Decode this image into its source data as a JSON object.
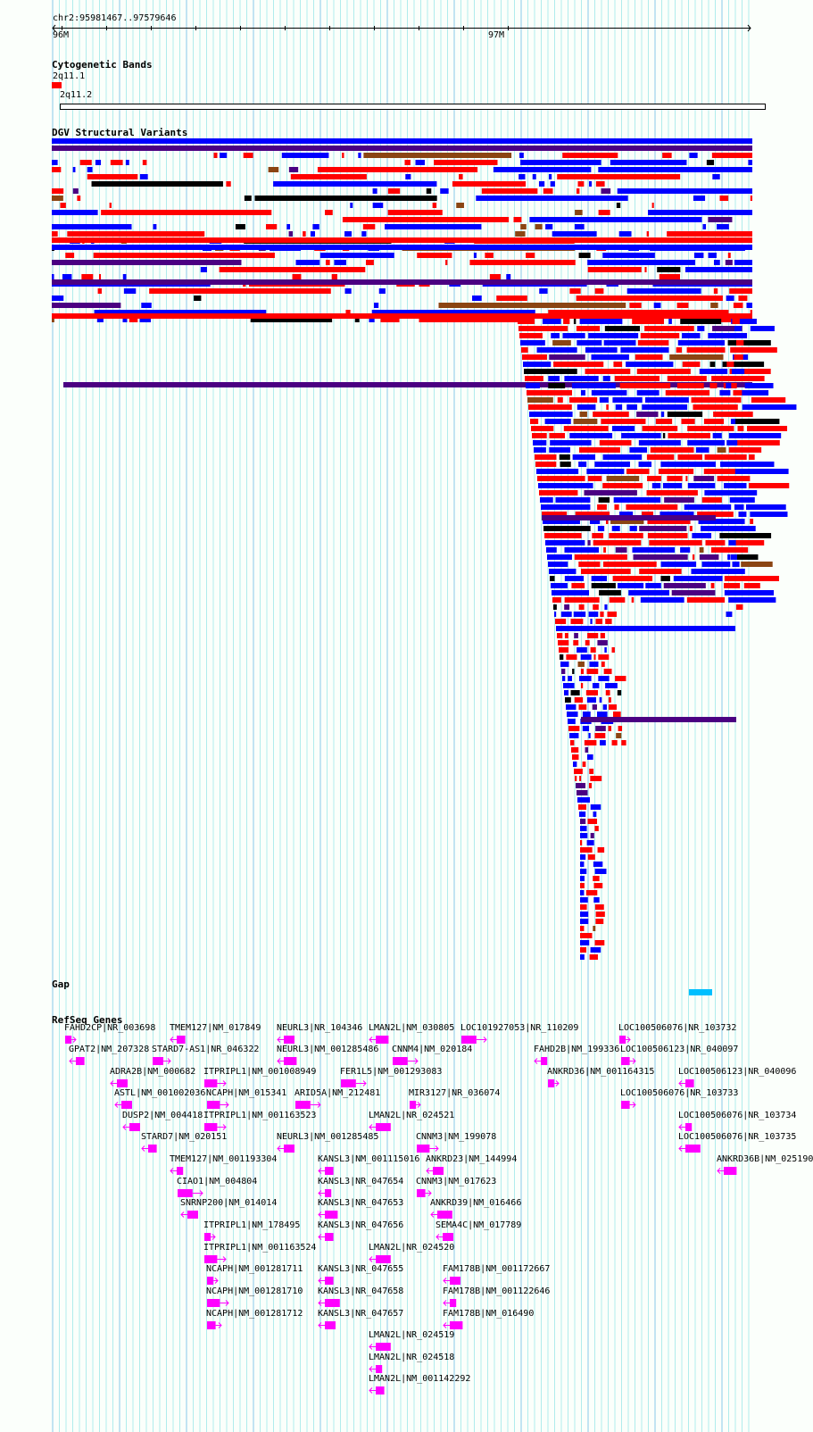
{
  "ruler": {
    "position": "chr2:95981467..97579646",
    "ticks": [
      {
        "label": "96M",
        "pos": 96000000
      },
      {
        "label": "97M",
        "pos": 97000000
      }
    ],
    "start": 95981467,
    "end": 97579646
  },
  "cytobands": {
    "title": "Cytogenetic Bands",
    "bands": [
      {
        "name": "2q11.1",
        "start": 95981467,
        "end": 96004000,
        "color": "#ff0000"
      },
      {
        "name": "2q11.2",
        "start": 96004000,
        "end": 97579646,
        "color": "#ffffff"
      }
    ]
  },
  "dgv": {
    "title": "DGV Structural Variants",
    "colors": {
      "gain": "#0000ff",
      "loss": "#ff0000",
      "both": "#8b4513",
      "inversion": "#4b0082",
      "complex": "#000000"
    }
  },
  "gap": {
    "title": "Gap",
    "items": [
      {
        "start": 97420000,
        "end": 97470000,
        "color": "#00bfff"
      }
    ]
  },
  "refseq": {
    "title": "RefSeq Genes",
    "color": "#ff00ff",
    "genes": [
      {
        "label": "FAHD2CP|NR_003698",
        "strand": "+"
      },
      {
        "label": "TMEM127|NM_017849",
        "strand": "-"
      },
      {
        "label": "NEURL3|NR_104346",
        "strand": "-"
      },
      {
        "label": "LMAN2L|NM_030805",
        "strand": "-"
      },
      {
        "label": "LOC101927053|NR_110209",
        "strand": "+"
      },
      {
        "label": "LOC100506076|NR_103732",
        "strand": "+"
      },
      {
        "label": "GPAT2|NM_207328",
        "strand": "-"
      },
      {
        "label": "STARD7-AS1|NR_046322",
        "strand": "+"
      },
      {
        "label": "NEURL3|NM_001285486",
        "strand": "-"
      },
      {
        "label": "CNNM4|NM_020184",
        "strand": "+"
      },
      {
        "label": "FAHD2B|NM_199336",
        "strand": "-"
      },
      {
        "label": "LOC100506123|NR_040097",
        "strand": "+"
      },
      {
        "label": "ADRA2B|NM_000682",
        "strand": "-"
      },
      {
        "label": "ITPRIPL1|NM_001008949",
        "strand": "+"
      },
      {
        "label": "FER1L5|NM_001293083",
        "strand": "+"
      },
      {
        "label": "ANKRD36|NM_001164315",
        "strand": "+"
      },
      {
        "label": "LOC100506123|NR_040096",
        "strand": "-"
      },
      {
        "label": "ASTL|NM_001002036",
        "strand": "-"
      },
      {
        "label": "NCAPH|NM_015341",
        "strand": "+"
      },
      {
        "label": "ARID5A|NM_212481",
        "strand": "+"
      },
      {
        "label": "MIR3127|NR_036074",
        "strand": "+"
      },
      {
        "label": "LOC100506076|NR_103733",
        "strand": "+"
      },
      {
        "label": "DUSP2|NM_004418",
        "strand": "-"
      },
      {
        "label": "ITPRIPL1|NM_001163523",
        "strand": "+"
      },
      {
        "label": "LMAN2L|NR_024521",
        "strand": "-"
      },
      {
        "label": "LOC100506076|NR_103734",
        "strand": "-"
      },
      {
        "label": "STARD7|NM_020151",
        "strand": "-"
      },
      {
        "label": "NEURL3|NM_001285485",
        "strand": "-"
      },
      {
        "label": "CNNM3|NM_199078",
        "strand": "+"
      },
      {
        "label": "LOC100506076|NR_103735",
        "strand": "-"
      },
      {
        "label": "TMEM127|NM_001193304",
        "strand": "-"
      },
      {
        "label": "KANSL3|NM_001115016",
        "strand": "-"
      },
      {
        "label": "ANKRD23|NM_144994",
        "strand": "-"
      },
      {
        "label": "ANKRD36B|NM_025190",
        "strand": "-"
      },
      {
        "label": "CIAO1|NM_004804",
        "strand": "+"
      },
      {
        "label": "KANSL3|NR_047654",
        "strand": "-"
      },
      {
        "label": "CNNM3|NM_017623",
        "strand": "+"
      },
      {
        "label": "SNRNP200|NM_014014",
        "strand": "-"
      },
      {
        "label": "KANSL3|NR_047653",
        "strand": "-"
      },
      {
        "label": "ANKRD39|NM_016466",
        "strand": "-"
      },
      {
        "label": "ITPRIPL1|NM_178495",
        "strand": "+"
      },
      {
        "label": "KANSL3|NR_047656",
        "strand": "-"
      },
      {
        "label": "SEMA4C|NM_017789",
        "strand": "-"
      },
      {
        "label": "ITPRIPL1|NM_001163524",
        "strand": "+"
      },
      {
        "label": "LMAN2L|NR_024520",
        "strand": "-"
      },
      {
        "label": "NCAPH|NM_001281711",
        "strand": "+"
      },
      {
        "label": "KANSL3|NR_047655",
        "strand": "-"
      },
      {
        "label": "FAM178B|NM_001172667",
        "strand": "-"
      },
      {
        "label": "NCAPH|NM_001281710",
        "strand": "+"
      },
      {
        "label": "KANSL3|NR_047658",
        "strand": "-"
      },
      {
        "label": "FAM178B|NM_001122646",
        "strand": "-"
      },
      {
        "label": "NCAPH|NM_001281712",
        "strand": "+"
      },
      {
        "label": "KANSL3|NR_047657",
        "strand": "-"
      },
      {
        "label": "FAM178B|NM_016490",
        "strand": "-"
      },
      {
        "label": "LMAN2L|NR_024519",
        "strand": "-"
      },
      {
        "label": "LMAN2L|NR_024518",
        "strand": "-"
      },
      {
        "label": "LMAN2L|NM_001142292",
        "strand": "-"
      }
    ]
  }
}
